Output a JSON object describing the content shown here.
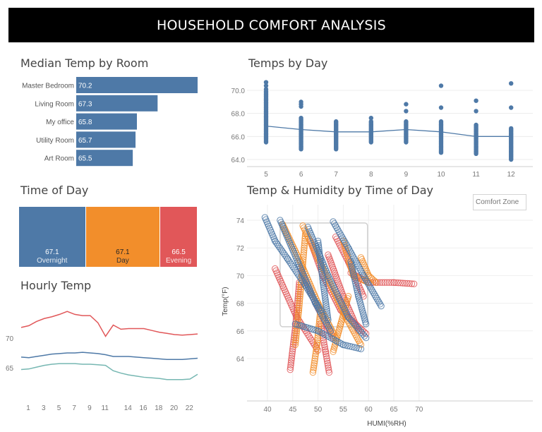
{
  "header": {
    "title": "HOUSEHOLD COMFORT ANALYSIS"
  },
  "colors": {
    "blue": "#4e79a7",
    "orange": "#f28e2b",
    "red": "#e15759",
    "teal": "#76b7b2"
  },
  "chart_data": [
    {
      "id": "median-temp-by-room",
      "type": "bar",
      "title": "Median Temp by Room",
      "categories": [
        "Master Bedroom",
        "Living Room",
        "My office",
        "Utility Room",
        "Art Room"
      ],
      "values": [
        70.2,
        67.3,
        65.8,
        65.7,
        65.5
      ],
      "labels": [
        "70.2",
        "67.3",
        "65.8",
        "65.7",
        "65.5"
      ],
      "orientation": "horizontal",
      "color": "#4e79a7"
    },
    {
      "id": "temps-by-day",
      "type": "scatter",
      "title": "Temps by Day",
      "x_ticks": [
        "5",
        "6",
        "7",
        "8",
        "9",
        "10",
        "11",
        "12"
      ],
      "y_ticks": [
        "64.0",
        "66.0",
        "68.0",
        "70.0"
      ],
      "ylim": [
        63.6,
        71.0
      ],
      "points": [
        {
          "day": 5,
          "min": 65.5,
          "max": 69.9,
          "outliers": [
            70.1,
            70.4,
            70.7
          ]
        },
        {
          "day": 6,
          "min": 64.9,
          "max": 67.6,
          "outliers": [
            68.6,
            68.8,
            69.0
          ]
        },
        {
          "day": 7,
          "min": 64.9,
          "max": 67.3,
          "outliers": []
        },
        {
          "day": 8,
          "min": 65.5,
          "max": 67.3,
          "outliers": [
            67.6
          ]
        },
        {
          "day": 9,
          "min": 65.5,
          "max": 67.3,
          "outliers": [
            68.2,
            68.8
          ]
        },
        {
          "day": 10,
          "min": 64.6,
          "max": 67.3,
          "outliers": [
            68.5,
            70.4
          ]
        },
        {
          "day": 11,
          "min": 64.5,
          "max": 67.0,
          "outliers": [
            68.2,
            69.1
          ]
        },
        {
          "day": 12,
          "min": 64.0,
          "max": 66.7,
          "outliers": [
            68.5,
            70.6
          ]
        }
      ],
      "median_line": [
        {
          "day": 5,
          "value": 66.9
        },
        {
          "day": 6,
          "value": 66.6
        },
        {
          "day": 7,
          "value": 66.4
        },
        {
          "day": 8,
          "value": 66.4
        },
        {
          "day": 9,
          "value": 66.6
        },
        {
          "day": 10,
          "value": 66.4
        },
        {
          "day": 11,
          "value": 66.0
        },
        {
          "day": 12,
          "value": 66.0
        }
      ],
      "color": "#4e79a7"
    },
    {
      "id": "time-of-day",
      "type": "bar",
      "title": "Time of Day",
      "categories": [
        "Overnight",
        "Day",
        "Evening"
      ],
      "values": [
        67.1,
        67.1,
        66.5
      ],
      "labels": [
        "67.1",
        "67.1",
        "66.5"
      ],
      "shares": [
        0.43,
        0.48,
        0.24
      ],
      "colors": [
        "#4e79a7",
        "#f28e2b",
        "#e15759"
      ]
    },
    {
      "id": "hourly-temp",
      "type": "line",
      "title": "Hourly Temp",
      "x_ticks": [
        "1",
        "3",
        "5",
        "7",
        "9",
        "11",
        "14",
        "16",
        "18",
        "20",
        "22"
      ],
      "y_ticks": [
        "65",
        "70"
      ],
      "ylim": [
        62.5,
        75.5
      ],
      "x": [
        0,
        1,
        2,
        3,
        4,
        5,
        6,
        7,
        8,
        9,
        10,
        11,
        12,
        13,
        14,
        15,
        16,
        17,
        18,
        19,
        20,
        21,
        22,
        23
      ],
      "series": [
        {
          "color": "#e15759",
          "values": [
            71.8,
            72.1,
            72.8,
            73.3,
            73.6,
            74.0,
            74.5,
            74.0,
            73.8,
            73.8,
            72.6,
            70.3,
            72.2,
            71.5,
            71.6,
            71.6,
            71.6,
            71.3,
            71.0,
            70.8,
            70.6,
            70.5,
            70.6,
            70.7
          ]
        },
        {
          "color": "#4e79a7",
          "values": [
            66.8,
            66.7,
            66.9,
            67.1,
            67.3,
            67.4,
            67.5,
            67.5,
            67.6,
            67.5,
            67.4,
            67.2,
            66.9,
            66.9,
            66.9,
            66.8,
            66.7,
            66.6,
            66.5,
            66.4,
            66.4,
            66.4,
            66.5,
            66.6
          ]
        },
        {
          "color": "#76b7b2",
          "values": [
            64.7,
            64.8,
            65.1,
            65.4,
            65.6,
            65.7,
            65.7,
            65.7,
            65.6,
            65.6,
            65.5,
            65.4,
            64.5,
            64.1,
            63.8,
            63.6,
            63.4,
            63.3,
            63.2,
            63.0,
            63.0,
            63.0,
            63.1,
            63.9
          ]
        }
      ]
    },
    {
      "id": "temp-humidity",
      "type": "scatter",
      "title": "Temp & Humidity by Time of Day",
      "xlabel": "HUMI(%RH)",
      "ylabel": "Temp(°F)",
      "x_ticks": [
        "40",
        "45",
        "50",
        "55",
        "60",
        "65",
        "70"
      ],
      "y_ticks": [
        "64",
        "66",
        "68",
        "70",
        "72",
        "74"
      ],
      "xlim": [
        38.5,
        71.5
      ],
      "ylim": [
        62.2,
        74.9
      ],
      "comfort_zone": {
        "label": "Comfort Zone",
        "humi": [
          42.5,
          59.8
        ],
        "temp": [
          66.3,
          73.8
        ]
      },
      "series": [
        {
          "name": "Evening",
          "color": "#e15759",
          "segments": [
            [
              [
                41.5,
                70.5
              ],
              [
                45.8,
                67.0
              ],
              [
                50.0,
                64.6
              ]
            ],
            [
              [
                48.5,
                72.5
              ],
              [
                51.0,
                70.0
              ],
              [
                54.5,
                67.5
              ],
              [
                59.5,
                65.8
              ]
            ],
            [
              [
                44.5,
                63.2
              ],
              [
                45.6,
                66.5
              ],
              [
                46.3,
                69.5
              ]
            ],
            [
              [
                52.0,
                71.5
              ],
              [
                55.0,
                68.5
              ],
              [
                58.0,
                66.0
              ]
            ],
            [
              [
                46.5,
                70.5
              ],
              [
                49.5,
                68.0
              ],
              [
                53.0,
                65.5
              ]
            ],
            [
              [
                56.5,
                70.2
              ],
              [
                60.0,
                69.5
              ],
              [
                65.0,
                69.5
              ],
              [
                69.0,
                69.4
              ]
            ],
            [
              [
                50.5,
                66.5
              ],
              [
                51.5,
                64.5
              ],
              [
                52.2,
                63.0
              ]
            ],
            [
              [
                53.5,
                72.8
              ],
              [
                56.0,
                71.0
              ],
              [
                59.0,
                68.5
              ]
            ]
          ]
        },
        {
          "name": "Day",
          "color": "#f28e2b",
          "segments": [
            [
              [
                43.0,
                73.7
              ],
              [
                46.5,
                71.0
              ],
              [
                50.0,
                68.0
              ],
              [
                53.5,
                65.5
              ]
            ],
            [
              [
                47.0,
                73.6
              ],
              [
                51.0,
                70.5
              ],
              [
                55.5,
                67.0
              ],
              [
                58.5,
                65.0
              ]
            ],
            [
              [
                45.5,
                65.0
              ],
              [
                46.2,
                67.5
              ],
              [
                46.8,
                70.0
              ],
              [
                47.5,
                73.0
              ]
            ],
            [
              [
                49.0,
                63.0
              ],
              [
                49.8,
                65.0
              ],
              [
                50.5,
                67.5
              ]
            ],
            [
              [
                55.0,
                72.5
              ],
              [
                57.0,
                70.0
              ],
              [
                60.0,
                69.5
              ]
            ],
            [
              [
                53.0,
                64.5
              ],
              [
                54.5,
                66.5
              ],
              [
                56.0,
                68.5
              ]
            ],
            [
              [
                58.5,
                71.3
              ],
              [
                60.0,
                70.0
              ],
              [
                61.5,
                69.5
              ]
            ]
          ]
        },
        {
          "name": "Overnight",
          "color": "#4e79a7",
          "segments": [
            [
              [
                39.5,
                74.2
              ],
              [
                41.5,
                72.5
              ],
              [
                44.0,
                71.2
              ],
              [
                47.5,
                69.3
              ],
              [
                50.5,
                67.5
              ]
            ],
            [
              [
                42.5,
                74.0
              ],
              [
                46.0,
                71.0
              ],
              [
                49.5,
                68.0
              ],
              [
                52.5,
                66.0
              ]
            ],
            [
              [
                48.0,
                73.5
              ],
              [
                52.0,
                70.0
              ],
              [
                56.0,
                67.0
              ],
              [
                59.5,
                65.5
              ]
            ],
            [
              [
                53.0,
                73.9
              ],
              [
                56.0,
                72.0
              ],
              [
                59.0,
                70.0
              ],
              [
                62.5,
                67.8
              ]
            ],
            [
              [
                45.5,
                66.5
              ],
              [
                50.0,
                66.0
              ],
              [
                55.0,
                65.0
              ],
              [
                58.5,
                64.7
              ]
            ],
            [
              [
                50.0,
                72.5
              ],
              [
                51.0,
                69.5
              ],
              [
                52.0,
                66.8
              ]
            ],
            [
              [
                56.5,
                71.0
              ],
              [
                58.0,
                68.5
              ],
              [
                59.5,
                66.5
              ]
            ]
          ]
        }
      ]
    }
  ]
}
